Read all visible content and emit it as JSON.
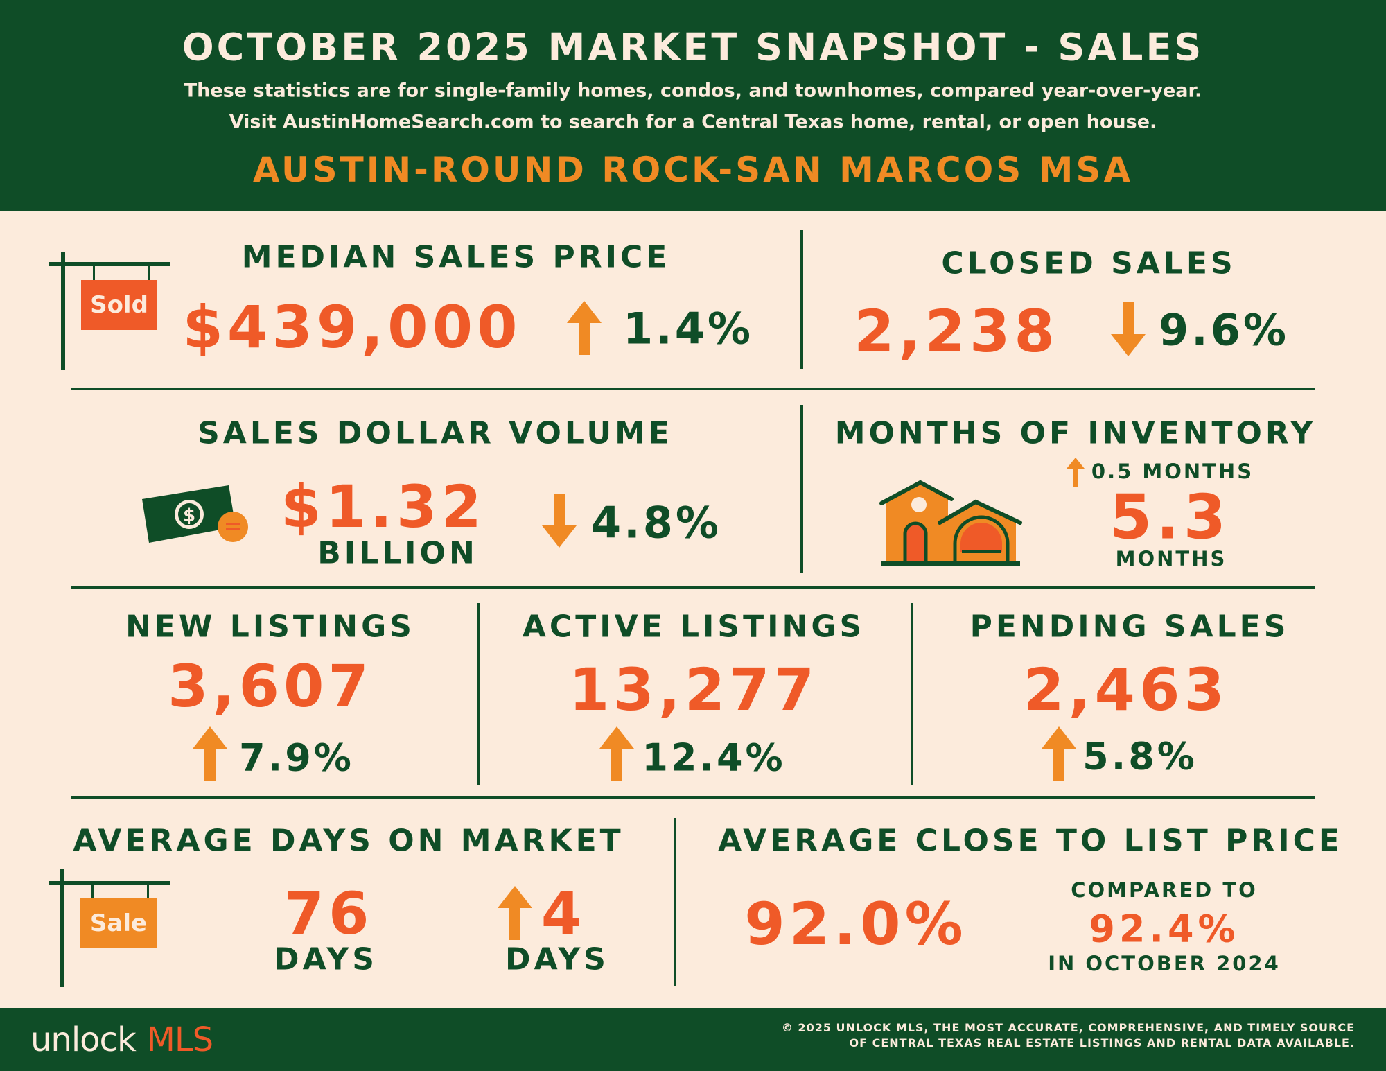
{
  "header": {
    "title": "OCTOBER 2025 MARKET SNAPSHOT - SALES",
    "subtitle_line1": "These statistics are for single-family homes, condos, and townhomes, compared year-over-year.",
    "subtitle_line2": "Visit AustinHomeSearch.com to search for a Central Texas home, rental, or open house.",
    "region": "AUSTIN-ROUND ROCK-SAN MARCOS MSA"
  },
  "median_sales_price": {
    "label": "MEDIAN SALES PRICE",
    "value": "$439,000",
    "change": "1.4%",
    "direction": "up",
    "sign_text": "Sold",
    "icon": "sold-sign-icon"
  },
  "closed_sales": {
    "label": "CLOSED SALES",
    "value": "2,238",
    "change": "9.6%",
    "direction": "down"
  },
  "sales_dollar_volume": {
    "label": "SALES DOLLAR VOLUME",
    "value": "$1.32",
    "unit": "BILLION",
    "change": "4.8%",
    "direction": "down",
    "icon": "money-icon"
  },
  "months_of_inventory": {
    "label": "MONTHS OF INVENTORY",
    "change": "0.5  MONTHS",
    "direction": "up",
    "value": "5.3",
    "unit": "MONTHS",
    "icon": "house-icon"
  },
  "new_listings": {
    "label": "NEW LISTINGS",
    "value": "3,607",
    "change": "7.9%",
    "direction": "up"
  },
  "active_listings": {
    "label": "ACTIVE LISTINGS",
    "value": "13,277",
    "change": "12.4%",
    "direction": "up"
  },
  "pending_sales": {
    "label": "PENDING SALES",
    "value": "2,463",
    "change": "5.8%",
    "direction": "up"
  },
  "avg_days_on_market": {
    "label": "AVERAGE DAYS ON MARKET",
    "value": "76",
    "unit": "DAYS",
    "change": "4",
    "change_unit": "DAYS",
    "direction": "up",
    "sign_text": "Sale",
    "icon": "sale-sign-icon"
  },
  "avg_close_to_list": {
    "label": "AVERAGE CLOSE TO LIST PRICE",
    "value": "92.0%",
    "compared_label": "COMPARED TO",
    "compared_value": "92.4%",
    "compared_period": "IN OCTOBER 2024"
  },
  "footer": {
    "logo_part1": "unlock",
    "logo_part2": "MLS",
    "copyright_line1": "© 2025 UNLOCK MLS, THE MOST ACCURATE, COMPREHENSIVE, AND TIMELY SOURCE",
    "copyright_line2": "OF CENTRAL TEXAS REAL ESTATE LISTINGS AND RENTAL DATA AVAILABLE."
  },
  "colors": {
    "green": "#0f4d27",
    "cream": "#fcebdc",
    "red_orange": "#ef5a28",
    "orange": "#f08a24"
  }
}
